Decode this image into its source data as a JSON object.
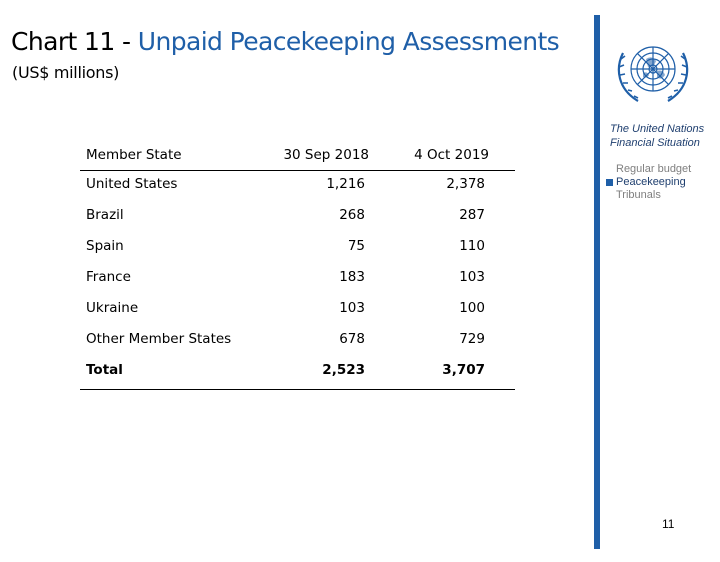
{
  "header": {
    "title_prefix": "Chart 11 - ",
    "title_accent": "Unpaid Peacekeeping Assessments",
    "subtitle": "(US$ millions)"
  },
  "table": {
    "columns": [
      "Member State",
      "30 Sep 2018",
      "4 Oct 2019"
    ],
    "rows": [
      [
        "United States",
        "1,216",
        "2,378"
      ],
      [
        "Brazil",
        "268",
        "287"
      ],
      [
        "Spain",
        "75",
        "110"
      ],
      [
        "France",
        "183",
        "103"
      ],
      [
        "Ukraine",
        "103",
        "100"
      ],
      [
        "Other Member States",
        "678",
        "729"
      ]
    ],
    "total": [
      "Total",
      "2,523",
      "3,707"
    ]
  },
  "sidebar": {
    "logo_icon": "un-emblem-icon",
    "title": "The United Nations Financial Situation",
    "nav": [
      {
        "label": "Regular budget",
        "active": false
      },
      {
        "label": "Peacekeeping",
        "active": true
      },
      {
        "label": "Tribunals",
        "active": false
      }
    ]
  },
  "page_number": "11",
  "colors": {
    "accent": "#1f5fa8",
    "sidebar_text": "#1f3f6f",
    "muted": "#7f7f7f"
  }
}
